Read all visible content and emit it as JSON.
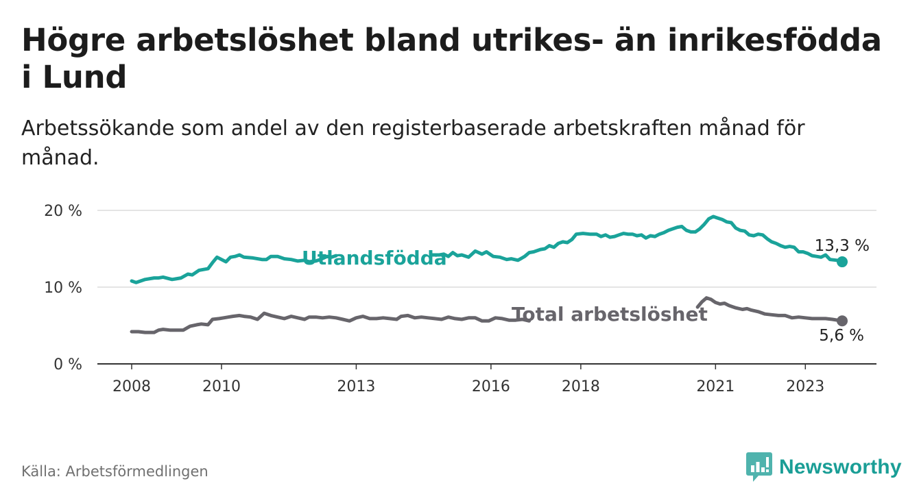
{
  "title": "Högre arbetslöshet bland utrikes- än inrikesfödda i Lund",
  "subtitle": "Arbetssökande som andel av den registerbaserade arbetskraften månad för månad.",
  "source": "Källa: Arbetsförmedlingen",
  "brand": "Newsworthy",
  "colors": {
    "teal": "#1aa39a",
    "gray": "#67656b",
    "grid": "#dcdcdc",
    "axis": "#333333"
  },
  "chart_data": {
    "type": "line",
    "ylim": [
      0,
      20
    ],
    "xlim": [
      2008,
      2024.1
    ],
    "y_ticks": [
      0,
      10,
      20
    ],
    "y_tick_labels": [
      "0 %",
      "10 %",
      "20 %"
    ],
    "x_ticks": [
      2008,
      2010,
      2013,
      2016,
      2018,
      2021,
      2023
    ],
    "x_tick_labels": [
      "2008",
      "2010",
      "2013",
      "2016",
      "2018",
      "2021",
      "2023"
    ],
    "series": [
      {
        "name": "Utlandsfödda",
        "color": "#1aa39a",
        "end_label": "13,3 %",
        "points": [
          [
            2008.0,
            10.8
          ],
          [
            2008.1,
            10.6
          ],
          [
            2008.3,
            11.0
          ],
          [
            2008.5,
            11.2
          ],
          [
            2008.6,
            11.2
          ],
          [
            2008.7,
            11.3
          ],
          [
            2008.9,
            11.0
          ],
          [
            2009.1,
            11.2
          ],
          [
            2009.25,
            11.7
          ],
          [
            2009.35,
            11.6
          ],
          [
            2009.5,
            12.2
          ],
          [
            2009.7,
            12.4
          ],
          [
            2009.8,
            13.2
          ],
          [
            2009.9,
            13.9
          ],
          [
            2010.0,
            13.6
          ],
          [
            2010.1,
            13.3
          ],
          [
            2010.2,
            13.9
          ],
          [
            2010.3,
            14.0
          ],
          [
            2010.4,
            14.2
          ],
          [
            2010.5,
            13.9
          ],
          [
            2010.7,
            13.8
          ],
          [
            2010.9,
            13.6
          ],
          [
            2011.0,
            13.6
          ],
          [
            2011.1,
            14.0
          ],
          [
            2011.25,
            14.0
          ],
          [
            2011.4,
            13.7
          ],
          [
            2011.55,
            13.6
          ],
          [
            2011.7,
            13.4
          ],
          [
            2011.85,
            13.5
          ],
          [
            2011.95,
            13.3
          ],
          [
            2012.1,
            13.4
          ],
          [
            2012.2,
            13.6
          ],
          [
            2012.35,
            14.0
          ],
          [
            2012.45,
            13.9
          ],
          [
            2012.55,
            14.1
          ],
          [
            null,
            null
          ],
          [
            2014.7,
            14.2
          ],
          [
            2014.85,
            14.2
          ],
          [
            2014.95,
            14.3
          ],
          [
            2015.05,
            14.0
          ],
          [
            2015.15,
            14.5
          ],
          [
            2015.25,
            14.1
          ],
          [
            2015.35,
            14.2
          ],
          [
            2015.5,
            13.9
          ],
          [
            2015.65,
            14.7
          ],
          [
            2015.8,
            14.3
          ],
          [
            2015.9,
            14.6
          ],
          [
            2016.05,
            14.0
          ],
          [
            2016.2,
            13.9
          ],
          [
            2016.35,
            13.6
          ],
          [
            2016.45,
            13.7
          ],
          [
            2016.6,
            13.5
          ],
          [
            2016.75,
            14.0
          ],
          [
            2016.85,
            14.5
          ],
          [
            2016.95,
            14.6
          ],
          [
            2017.1,
            14.9
          ],
          [
            2017.2,
            15.0
          ],
          [
            2017.3,
            15.4
          ],
          [
            2017.4,
            15.2
          ],
          [
            2017.5,
            15.7
          ],
          [
            2017.6,
            15.9
          ],
          [
            2017.7,
            15.8
          ],
          [
            2017.8,
            16.2
          ],
          [
            2017.9,
            16.9
          ],
          [
            2018.05,
            17.0
          ],
          [
            2018.2,
            16.9
          ],
          [
            2018.35,
            16.9
          ],
          [
            2018.45,
            16.6
          ],
          [
            2018.55,
            16.8
          ],
          [
            2018.65,
            16.5
          ],
          [
            2018.75,
            16.6
          ],
          [
            2018.85,
            16.8
          ],
          [
            2018.95,
            17.0
          ],
          [
            2019.05,
            16.9
          ],
          [
            2019.15,
            16.9
          ],
          [
            2019.25,
            16.7
          ],
          [
            2019.35,
            16.8
          ],
          [
            2019.45,
            16.4
          ],
          [
            2019.55,
            16.7
          ],
          [
            2019.65,
            16.6
          ],
          [
            2019.75,
            16.9
          ],
          [
            2019.85,
            17.1
          ],
          [
            2019.95,
            17.4
          ],
          [
            2020.05,
            17.6
          ],
          [
            2020.15,
            17.8
          ],
          [
            2020.25,
            17.9
          ],
          [
            2020.35,
            17.4
          ],
          [
            2020.45,
            17.2
          ],
          [
            2020.55,
            17.2
          ],
          [
            2020.65,
            17.6
          ],
          [
            2020.75,
            18.2
          ],
          [
            2020.85,
            18.9
          ],
          [
            2020.95,
            19.2
          ],
          [
            2021.05,
            19.0
          ],
          [
            2021.15,
            18.8
          ],
          [
            2021.25,
            18.5
          ],
          [
            2021.35,
            18.4
          ],
          [
            2021.45,
            17.7
          ],
          [
            2021.55,
            17.4
          ],
          [
            2021.65,
            17.3
          ],
          [
            2021.75,
            16.8
          ],
          [
            2021.85,
            16.7
          ],
          [
            2021.95,
            16.9
          ],
          [
            2022.05,
            16.8
          ],
          [
            2022.15,
            16.3
          ],
          [
            2022.25,
            15.9
          ],
          [
            2022.35,
            15.7
          ],
          [
            2022.45,
            15.4
          ],
          [
            2022.55,
            15.2
          ],
          [
            2022.65,
            15.3
          ],
          [
            2022.75,
            15.2
          ],
          [
            2022.85,
            14.6
          ],
          [
            2022.95,
            14.6
          ],
          [
            2023.05,
            14.4
          ],
          [
            2023.15,
            14.1
          ],
          [
            2023.25,
            14.0
          ],
          [
            2023.35,
            13.9
          ],
          [
            2023.45,
            14.2
          ],
          [
            2023.55,
            13.6
          ],
          [
            2023.7,
            13.5
          ],
          [
            2023.82,
            13.3
          ]
        ]
      },
      {
        "name": "Total arbetslöshet",
        "color": "#67656b",
        "end_label": "5,6 %",
        "points": [
          [
            2008.0,
            4.2
          ],
          [
            2008.15,
            4.2
          ],
          [
            2008.3,
            4.1
          ],
          [
            2008.5,
            4.1
          ],
          [
            2008.6,
            4.4
          ],
          [
            2008.7,
            4.5
          ],
          [
            2008.85,
            4.4
          ],
          [
            2009.0,
            4.4
          ],
          [
            2009.15,
            4.4
          ],
          [
            2009.3,
            4.9
          ],
          [
            2009.45,
            5.1
          ],
          [
            2009.55,
            5.2
          ],
          [
            2009.7,
            5.1
          ],
          [
            2009.8,
            5.8
          ],
          [
            2009.95,
            5.9
          ],
          [
            2010.05,
            6.0
          ],
          [
            2010.15,
            6.1
          ],
          [
            2010.25,
            6.2
          ],
          [
            2010.4,
            6.3
          ],
          [
            2010.5,
            6.2
          ],
          [
            2010.65,
            6.1
          ],
          [
            2010.8,
            5.8
          ],
          [
            2010.95,
            6.6
          ],
          [
            2011.1,
            6.3
          ],
          [
            2011.25,
            6.1
          ],
          [
            2011.4,
            5.9
          ],
          [
            2011.55,
            6.2
          ],
          [
            2011.7,
            6.0
          ],
          [
            2011.85,
            5.8
          ],
          [
            2011.95,
            6.1
          ],
          [
            2012.1,
            6.1
          ],
          [
            2012.25,
            6.0
          ],
          [
            2012.4,
            6.1
          ],
          [
            2012.55,
            6.0
          ],
          [
            2012.7,
            5.8
          ],
          [
            2012.85,
            5.6
          ],
          [
            2013.0,
            6.0
          ],
          [
            2013.15,
            6.2
          ],
          [
            2013.3,
            5.9
          ],
          [
            2013.45,
            5.9
          ],
          [
            2013.6,
            6.0
          ],
          [
            2013.75,
            5.9
          ],
          [
            2013.9,
            5.8
          ],
          [
            2014.0,
            6.2
          ],
          [
            2014.15,
            6.3
          ],
          [
            2014.3,
            6.0
          ],
          [
            2014.45,
            6.1
          ],
          [
            2014.6,
            6.0
          ],
          [
            2014.75,
            5.9
          ],
          [
            2014.9,
            5.8
          ],
          [
            2015.05,
            6.1
          ],
          [
            2015.2,
            5.9
          ],
          [
            2015.35,
            5.8
          ],
          [
            2015.5,
            6.0
          ],
          [
            2015.65,
            6.0
          ],
          [
            2015.8,
            5.6
          ],
          [
            2015.95,
            5.6
          ],
          [
            2016.1,
            6.0
          ],
          [
            2016.25,
            5.9
          ],
          [
            2016.4,
            5.7
          ],
          [
            2016.55,
            5.7
          ],
          [
            2016.7,
            5.8
          ],
          [
            2016.85,
            5.6
          ],
          [
            null,
            null
          ],
          [
            2020.6,
            7.4
          ],
          [
            2020.7,
            8.1
          ],
          [
            2020.8,
            8.6
          ],
          [
            2020.9,
            8.4
          ],
          [
            2021.0,
            8.0
          ],
          [
            2021.1,
            7.8
          ],
          [
            2021.2,
            7.9
          ],
          [
            2021.3,
            7.6
          ],
          [
            2021.45,
            7.3
          ],
          [
            2021.6,
            7.1
          ],
          [
            2021.7,
            7.2
          ],
          [
            2021.8,
            7.0
          ],
          [
            2021.95,
            6.8
          ],
          [
            2022.1,
            6.5
          ],
          [
            2022.25,
            6.4
          ],
          [
            2022.4,
            6.3
          ],
          [
            2022.55,
            6.3
          ],
          [
            2022.7,
            6.0
          ],
          [
            2022.85,
            6.1
          ],
          [
            2023.0,
            6.0
          ],
          [
            2023.15,
            5.9
          ],
          [
            2023.3,
            5.9
          ],
          [
            2023.45,
            5.9
          ],
          [
            2023.6,
            5.8
          ],
          [
            2023.82,
            5.6
          ]
        ]
      }
    ]
  }
}
